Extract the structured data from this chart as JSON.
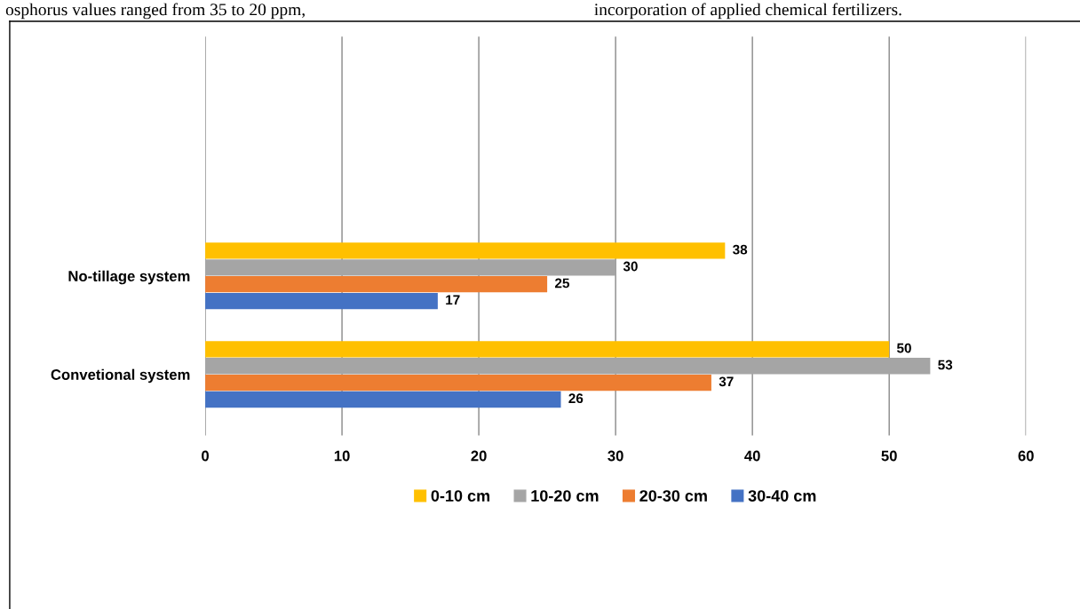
{
  "chart_data": {
    "type": "bar",
    "orientation": "horizontal",
    "categories": [
      "No-tillage system",
      "Convetional system"
    ],
    "series": [
      {
        "name": "0-10 cm",
        "color": "#ffc000",
        "values": [
          38,
          50
        ]
      },
      {
        "name": "10-20 cm",
        "color": "#a5a5a5",
        "values": [
          30,
          53
        ]
      },
      {
        "name": "20-30 cm",
        "color": "#ed7d31",
        "values": [
          25,
          37
        ]
      },
      {
        "name": "30-40 cm",
        "color": "#4472c4",
        "values": [
          17,
          26
        ]
      }
    ],
    "xlim": [
      0,
      60
    ],
    "xticks": [
      0,
      10,
      20,
      30,
      40,
      50,
      60
    ],
    "grid": "x",
    "legend": "bottom",
    "data_labels": true,
    "annotations": [
      "osphorus values ranged from 35 to 20 ppm,",
      "incorporation of applied chemical fertilizers."
    ]
  }
}
